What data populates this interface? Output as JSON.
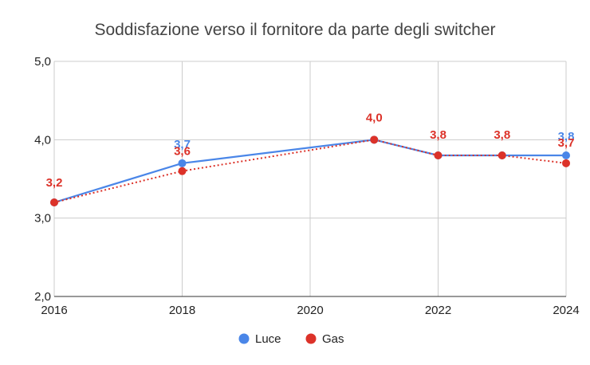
{
  "chart_data": {
    "type": "line",
    "title": "Soddisfazione verso il fornitore da parte degli switcher",
    "xlabel": "",
    "ylabel": "",
    "xlim": [
      2016,
      2024
    ],
    "ylim": [
      2.0,
      5.0
    ],
    "x_ticks": [
      "2016",
      "2018",
      "2020",
      "2022",
      "2024"
    ],
    "y_ticks": [
      "2,0",
      "3,0",
      "4,0",
      "5,0"
    ],
    "grid": true,
    "legend": "bottom",
    "series": [
      {
        "name": "Luce",
        "color": "#4a86e8",
        "line_style": "solid",
        "points": [
          {
            "x": 2016,
            "y": 3.2,
            "label": ""
          },
          {
            "x": 2018,
            "y": 3.7,
            "label": "3,7"
          },
          {
            "x": 2021,
            "y": 4.0,
            "label": ""
          },
          {
            "x": 2022,
            "y": 3.8,
            "label": ""
          },
          {
            "x": 2023,
            "y": 3.8,
            "label": ""
          },
          {
            "x": 2024,
            "y": 3.8,
            "label": "3,8"
          }
        ]
      },
      {
        "name": "Gas",
        "color": "#dc3229",
        "line_style": "dotted",
        "points": [
          {
            "x": 2016,
            "y": 3.2,
            "label": "3,2"
          },
          {
            "x": 2018,
            "y": 3.6,
            "label": "3,6"
          },
          {
            "x": 2021,
            "y": 4.0,
            "label": "4,0"
          },
          {
            "x": 2022,
            "y": 3.8,
            "label": "3,8"
          },
          {
            "x": 2023,
            "y": 3.8,
            "label": "3,8"
          },
          {
            "x": 2024,
            "y": 3.7,
            "label": "3,7"
          }
        ]
      }
    ]
  }
}
